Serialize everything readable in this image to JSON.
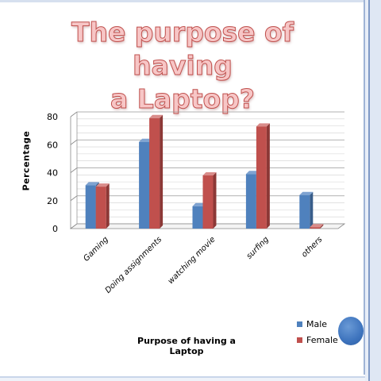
{
  "slide": {
    "title": "The purpose of having a Laptop?"
  },
  "colors": {
    "male": "#4f81bd",
    "female": "#c0504d",
    "title_fill": "#f7c6c6",
    "title_stroke": "#c0504d",
    "accent_circle": "#3d73bd"
  },
  "chart_data": {
    "type": "bar",
    "title": "",
    "xlabel": "Purpose of having a Laptop",
    "ylabel": "Percentage",
    "ylim": [
      0,
      80
    ],
    "yticks": [
      "0",
      "20",
      "40",
      "60",
      "80"
    ],
    "grid": true,
    "legend_position": "bottom-right",
    "categories": [
      "Gaming",
      "Doing assignments",
      "watching movie",
      "surfing",
      "others"
    ],
    "series": [
      {
        "name": "Male",
        "values": [
          31,
          62,
          16,
          39,
          24
        ]
      },
      {
        "name": "Female",
        "values": [
          30,
          79,
          38,
          73,
          1
        ]
      }
    ]
  }
}
